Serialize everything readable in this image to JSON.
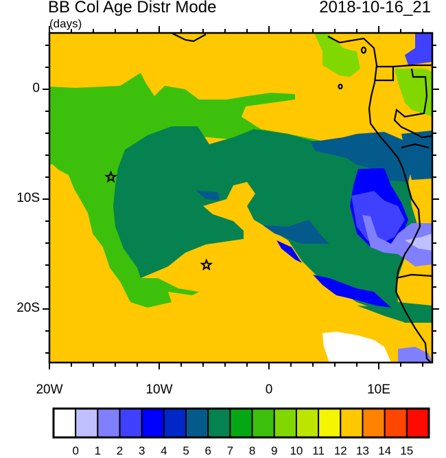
{
  "header": {
    "title": "BB Col Age Distr Mode",
    "units": "(days)",
    "datetime": "2018-10-16_21"
  },
  "map": {
    "region": "Southeast Atlantic / West Africa",
    "lon_range": [
      -20,
      15
    ],
    "lat_range": [
      -25,
      5
    ],
    "x_ticks": [
      {
        "lon": -20,
        "label": "20W"
      },
      {
        "lon": -10,
        "label": "10W"
      },
      {
        "lon": 0,
        "label": "0"
      },
      {
        "lon": 10,
        "label": "10E"
      }
    ],
    "y_ticks": [
      {
        "lat": 0,
        "label": "0"
      },
      {
        "lat": -10,
        "label": "10S"
      },
      {
        "lat": -20,
        "label": "20S"
      }
    ],
    "minor_tick_interval_deg": 2,
    "markers": [
      {
        "type": "star",
        "lon": -14.4,
        "lat": -8.0
      },
      {
        "type": "star",
        "lon": -5.7,
        "lat": -16.0
      }
    ],
    "background_value_color": "#ffc800"
  },
  "colorbar": {
    "labels": [
      "0",
      "1",
      "2",
      "3",
      "4",
      "5",
      "6",
      "7",
      "8",
      "9",
      "10",
      "11",
      "12",
      "13",
      "14",
      "15"
    ],
    "colors": [
      "#ffffff",
      "#c0c0ff",
      "#8080ff",
      "#4040ff",
      "#0000ff",
      "#0028c8",
      "#055a8c",
      "#068250",
      "#05a814",
      "#3cc00c",
      "#80d800",
      "#bce600",
      "#f5f500",
      "#ffc800",
      "#ff8200",
      "#ff4600",
      "#ff0a00"
    ]
  }
}
